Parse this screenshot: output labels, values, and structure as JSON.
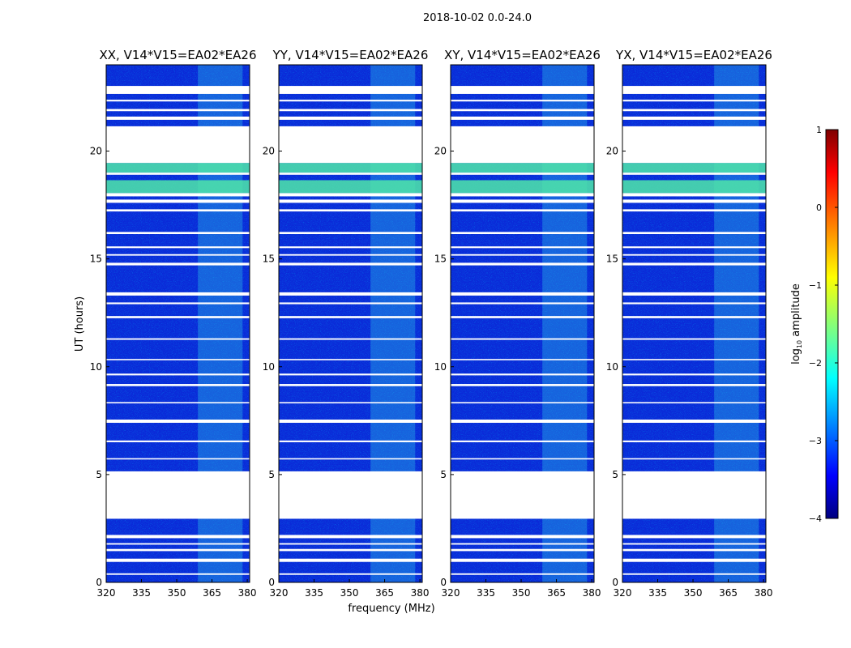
{
  "figure": {
    "suptitle": "2018-10-02 0.0-24.0",
    "xlabel": "frequency (MHz)",
    "ylabel": "UT (hours)"
  },
  "chart_data": {
    "type": "heatmap",
    "title": "2018-10-02 0.0-24.0",
    "xlabel": "frequency (MHz)",
    "ylabel": "UT (hours)",
    "xlim": [
      320,
      381
    ],
    "ylim": [
      0,
      24
    ],
    "xticks": [
      320,
      335,
      350,
      365,
      380
    ],
    "yticks": [
      0,
      5,
      10,
      15,
      20
    ],
    "panels": [
      {
        "title": "XX, V14*V15=EA02*EA26",
        "pol": "XX"
      },
      {
        "title": "YY, V14*V15=EA02*EA26",
        "pol": "YY"
      },
      {
        "title": "XY, V14*V15=EA02*EA26",
        "pol": "XY"
      },
      {
        "title": "YX, V14*V15=EA02*EA26",
        "pol": "YX"
      }
    ],
    "rfi_band_mhz": [
      359,
      378
    ],
    "flagged_gaps_hours": [
      [
        0.35,
        0.42
      ],
      [
        0.95,
        1.1
      ],
      [
        1.45,
        1.55
      ],
      [
        1.75,
        1.82
      ],
      [
        2.05,
        2.2
      ],
      [
        2.95,
        5.15
      ],
      [
        5.7,
        5.76
      ],
      [
        6.5,
        6.58
      ],
      [
        7.4,
        7.55
      ],
      [
        8.3,
        8.36
      ],
      [
        9.1,
        9.2
      ],
      [
        9.6,
        9.68
      ],
      [
        10.3,
        10.36
      ],
      [
        11.25,
        11.32
      ],
      [
        12.25,
        12.35
      ],
      [
        12.9,
        12.98
      ],
      [
        13.3,
        13.45
      ],
      [
        14.7,
        14.82
      ],
      [
        15.15,
        15.22
      ],
      [
        15.5,
        15.58
      ],
      [
        16.15,
        16.25
      ],
      [
        17.2,
        17.3
      ],
      [
        17.6,
        17.75
      ],
      [
        17.9,
        18.05
      ],
      [
        18.9,
        19.0
      ],
      [
        19.45,
        21.15
      ],
      [
        21.45,
        21.6
      ],
      [
        21.85,
        21.95
      ],
      [
        22.3,
        22.38
      ],
      [
        22.65,
        23.02
      ]
    ],
    "hot_rows_hours": [
      [
        18.05,
        18.65
      ],
      [
        19.0,
        19.45
      ]
    ],
    "colorbar": {
      "label": "log",
      "label_sub": "10",
      "label_rest": " amplitude",
      "ticks": [
        1,
        0,
        -1,
        -2,
        -3,
        -4
      ],
      "range": [
        -4,
        1
      ],
      "colormap": "jet",
      "tick_labels": [
        "1",
        "0",
        "−1",
        "−2",
        "−3",
        "−4"
      ]
    }
  }
}
